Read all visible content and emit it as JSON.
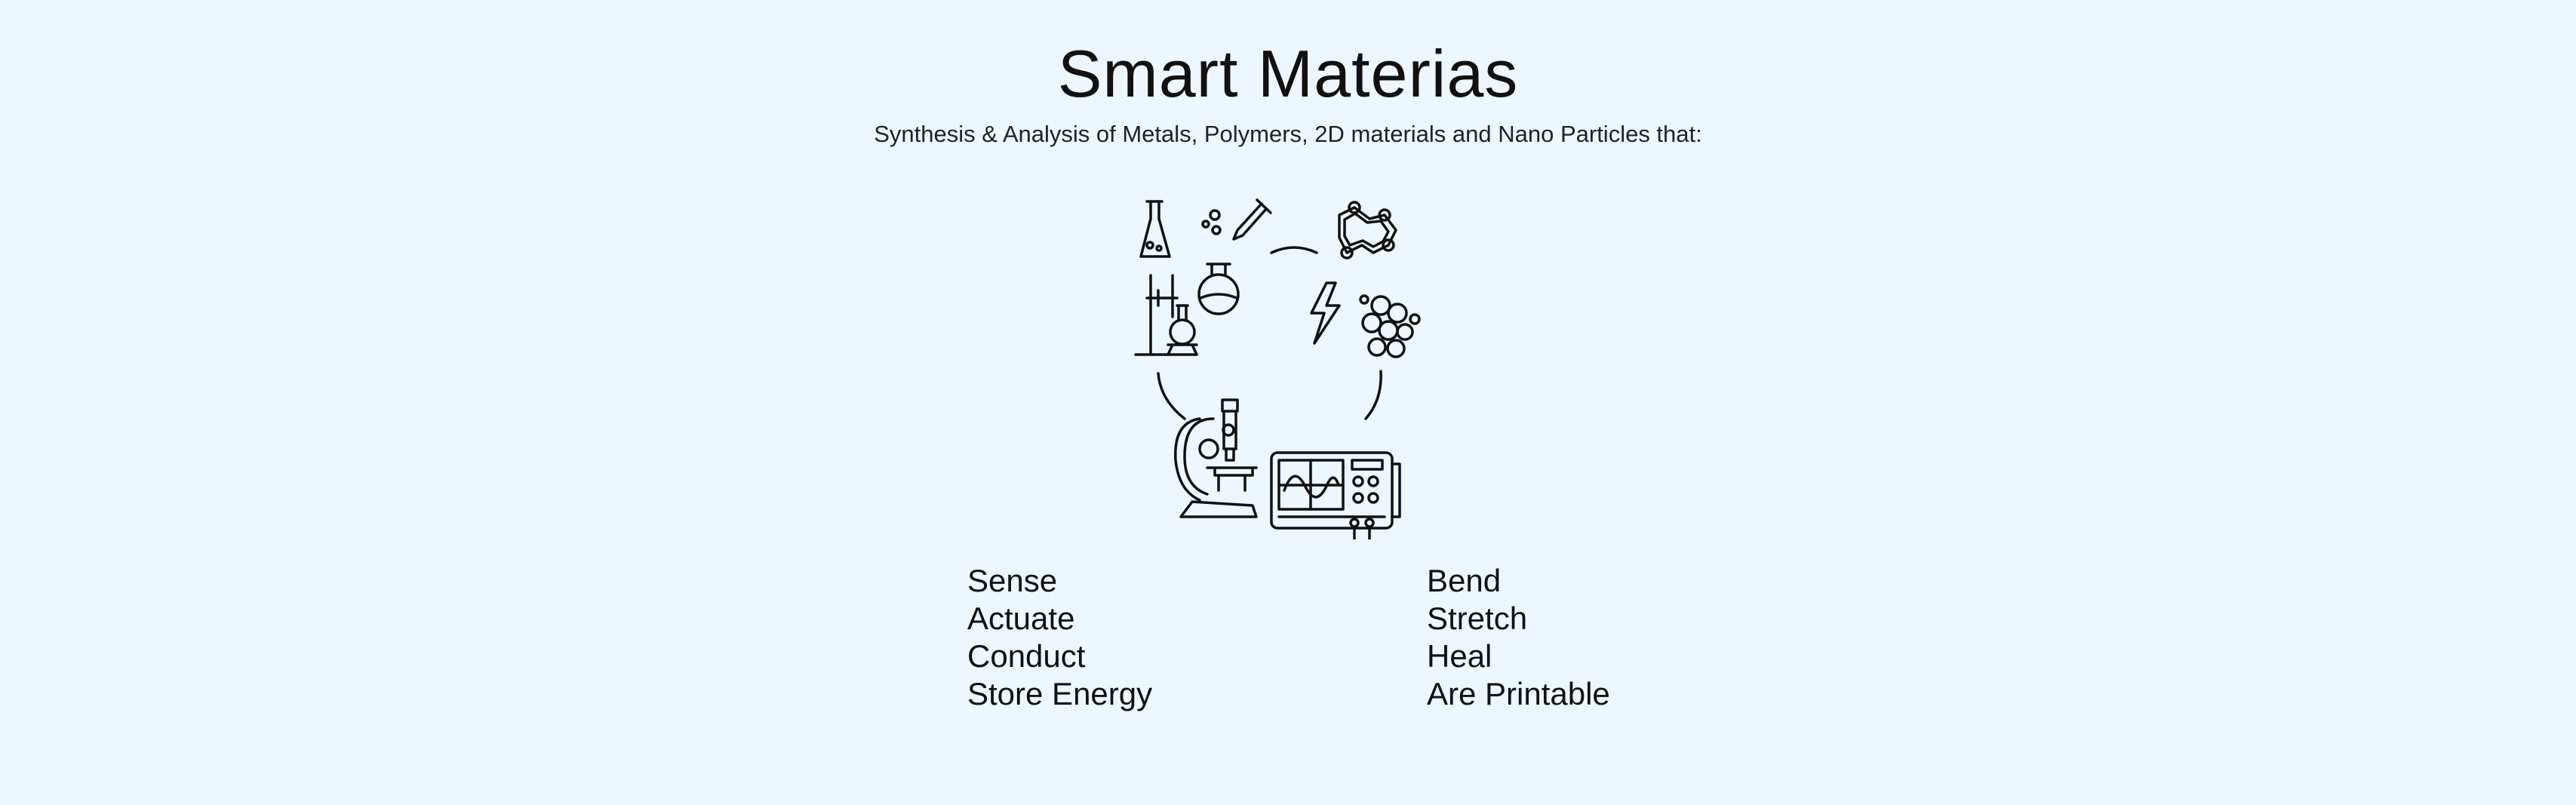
{
  "header": {
    "title": "Smart Materias",
    "subtitle": "Synthesis & Analysis of Metals, Polymers, 2D materials and Nano Particles that:"
  },
  "illustration": {
    "icons": [
      "chemistry-glassware-icon",
      "molecular-structure-icon",
      "microscope-icon",
      "oscilloscope-icon"
    ]
  },
  "capabilities": {
    "left": [
      "Sense",
      "Actuate",
      "Conduct",
      "Store Energy"
    ],
    "right": [
      "Bend",
      "Stretch",
      "Heal",
      "Are Printable"
    ]
  }
}
